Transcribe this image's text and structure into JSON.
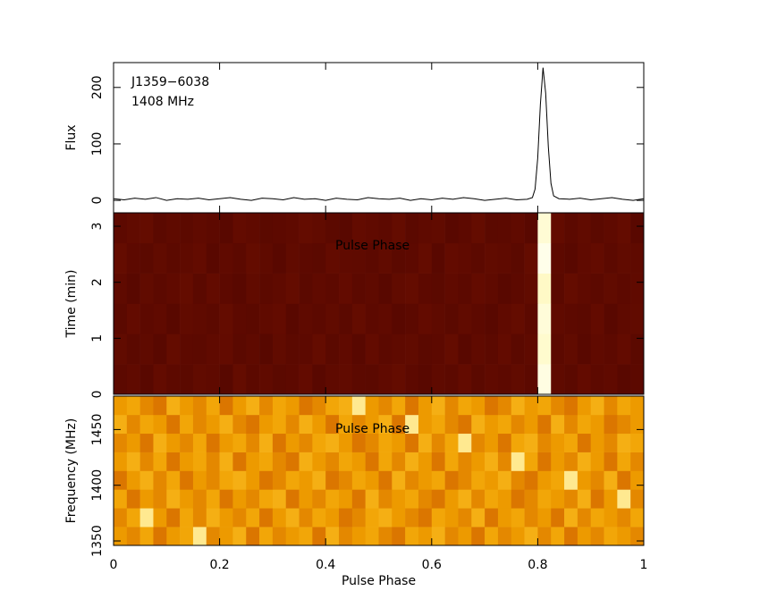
{
  "chart_data": [
    {
      "type": "line",
      "ylabel": "Flux",
      "annotations": [
        "J1359−6038",
        "1408 MHz"
      ],
      "xlim": [
        0,
        1
      ],
      "ylim": [
        -22,
        244
      ],
      "yticks": [
        0,
        100,
        200
      ],
      "color": "#000000",
      "x": [
        0,
        0.02,
        0.04,
        0.06,
        0.08,
        0.1,
        0.12,
        0.14,
        0.16,
        0.18,
        0.2,
        0.22,
        0.24,
        0.26,
        0.28,
        0.3,
        0.32,
        0.34,
        0.36,
        0.38,
        0.4,
        0.42,
        0.44,
        0.46,
        0.48,
        0.5,
        0.52,
        0.54,
        0.56,
        0.58,
        0.6,
        0.62,
        0.64,
        0.66,
        0.68,
        0.7,
        0.72,
        0.74,
        0.76,
        0.78,
        0.79,
        0.795,
        0.8,
        0.805,
        0.81,
        0.815,
        0.82,
        0.825,
        0.83,
        0.84,
        0.86,
        0.88,
        0.9,
        0.92,
        0.94,
        0.96,
        0.98,
        1
      ],
      "values": [
        3,
        1,
        4,
        2,
        5,
        0,
        3,
        2,
        4,
        1,
        3,
        5,
        2,
        0,
        4,
        3,
        1,
        5,
        2,
        3,
        0,
        4,
        2,
        1,
        5,
        3,
        2,
        4,
        0,
        3,
        1,
        4,
        2,
        5,
        3,
        0,
        2,
        4,
        1,
        2,
        5,
        20,
        75,
        170,
        235,
        190,
        95,
        30,
        8,
        3,
        2,
        4,
        1,
        3,
        5,
        2,
        0,
        3
      ]
    },
    {
      "type": "heatmap",
      "ylabel": "Time (min)",
      "annotations": [
        "Pulse Phase"
      ],
      "xlim": [
        0,
        1
      ],
      "ylim": [
        0,
        3.24
      ],
      "yticks": [
        0,
        1,
        2,
        3
      ],
      "zlim": [
        -10,
        240
      ],
      "colormap": [
        "#4a0300",
        "#a02000",
        "#ff9000",
        "#ffe840",
        "#fffff0"
      ],
      "xbins": [
        0,
        0.025,
        0.05,
        0.075,
        0.1,
        0.125,
        0.15,
        0.175,
        0.2,
        0.225,
        0.25,
        0.275,
        0.3,
        0.325,
        0.35,
        0.375,
        0.4,
        0.425,
        0.45,
        0.475,
        0.5,
        0.525,
        0.55,
        0.575,
        0.6,
        0.625,
        0.65,
        0.675,
        0.7,
        0.725,
        0.75,
        0.775,
        0.8,
        0.825,
        0.85,
        0.875,
        0.9,
        0.925,
        0.95,
        0.975,
        1
      ],
      "ybins": [
        0,
        0.54,
        1.08,
        1.62,
        2.16,
        2.7,
        3.24
      ],
      "z": [
        [
          3,
          6,
          1,
          8,
          4,
          2,
          7,
          5,
          0,
          9,
          3,
          6,
          2,
          4,
          8,
          1,
          5,
          7,
          3,
          2,
          6,
          9,
          4,
          1,
          5,
          3,
          8,
          2,
          6,
          4,
          7,
          3,
          235,
          5,
          2,
          8,
          4,
          6,
          1,
          3
        ],
        [
          7,
          2,
          5,
          1,
          9,
          4,
          3,
          6,
          8,
          2,
          5,
          0,
          7,
          3,
          4,
          9,
          2,
          6,
          1,
          8,
          3,
          5,
          7,
          2,
          4,
          9,
          1,
          6,
          3,
          8,
          2,
          5,
          228,
          3,
          7,
          1,
          6,
          4,
          8,
          2
        ],
        [
          2,
          8,
          4,
          6,
          1,
          7,
          5,
          3,
          9,
          4,
          2,
          6,
          8,
          1,
          5,
          3,
          7,
          2,
          9,
          4,
          6,
          1,
          3,
          8,
          5,
          2,
          7,
          4,
          1,
          6,
          9,
          3,
          232,
          6,
          4,
          2,
          8,
          1,
          5,
          7
        ],
        [
          5,
          1,
          7,
          3,
          6,
          9,
          2,
          8,
          4,
          1,
          7,
          3,
          5,
          9,
          2,
          6,
          4,
          8,
          3,
          5,
          1,
          7,
          9,
          4,
          2,
          6,
          3,
          8,
          5,
          1,
          4,
          7,
          225,
          2,
          9,
          5,
          3,
          7,
          4,
          6
        ],
        [
          9,
          4,
          2,
          7,
          3,
          5,
          8,
          1,
          6,
          3,
          9,
          5,
          1,
          7,
          4,
          2,
          8,
          6,
          5,
          3,
          7,
          2,
          4,
          9,
          1,
          8,
          6,
          3,
          7,
          5,
          2,
          9,
          238,
          4,
          1,
          6,
          8,
          3,
          7,
          5
        ],
        [
          4,
          7,
          9,
          2,
          5,
          3,
          6,
          4,
          1,
          8,
          6,
          2,
          4,
          5,
          9,
          7,
          3,
          1,
          8,
          6,
          4,
          9,
          2,
          5,
          7,
          1,
          4,
          9,
          2,
          3,
          6,
          1,
          230,
          8,
          3,
          7,
          2,
          5,
          9,
          1
        ]
      ]
    },
    {
      "type": "heatmap",
      "ylabel": "Frequency (MHz)",
      "xlabel": "Pulse Phase",
      "annotations": [
        "Pulse Phase"
      ],
      "xlim": [
        0,
        1
      ],
      "xticks": [
        0,
        0.2,
        0.4,
        0.6,
        0.8,
        1
      ],
      "ylim": [
        1346,
        1480
      ],
      "yticks": [
        1350,
        1400,
        1450
      ],
      "zlim": [
        0,
        16
      ],
      "colormap": [
        "#c04000",
        "#f0a000",
        "#ffd040",
        "#fff8c0"
      ],
      "xbins": [
        0,
        0.025,
        0.05,
        0.075,
        0.1,
        0.125,
        0.15,
        0.175,
        0.2,
        0.225,
        0.25,
        0.275,
        0.3,
        0.325,
        0.35,
        0.375,
        0.4,
        0.425,
        0.45,
        0.475,
        0.5,
        0.525,
        0.55,
        0.575,
        0.6,
        0.625,
        0.65,
        0.675,
        0.7,
        0.725,
        0.75,
        0.775,
        0.8,
        0.825,
        0.85,
        0.875,
        0.9,
        0.925,
        0.95,
        0.975,
        1
      ],
      "ybins": [
        1346,
        1362.75,
        1379.5,
        1396.25,
        1413,
        1429.75,
        1446.5,
        1463.25,
        1480
      ],
      "z": [
        [
          5,
          4,
          6,
          3,
          5,
          6,
          14,
          4,
          5,
          7,
          3,
          6,
          4,
          5,
          6,
          3,
          7,
          4,
          5,
          6,
          4,
          3,
          6,
          5,
          7,
          4,
          5,
          3,
          6,
          4,
          5,
          7,
          4,
          6,
          3,
          5,
          4,
          6,
          5,
          4
        ],
        [
          4,
          6,
          14,
          5,
          3,
          6,
          4,
          7,
          5,
          4,
          6,
          3,
          5,
          7,
          4,
          6,
          5,
          3,
          4,
          6,
          7,
          5,
          4,
          3,
          6,
          5,
          4,
          7,
          3,
          5,
          6,
          4,
          5,
          3,
          7,
          4,
          6,
          5,
          4,
          6
        ],
        [
          6,
          3,
          5,
          4,
          7,
          5,
          4,
          6,
          3,
          5,
          4,
          6,
          7,
          3,
          5,
          4,
          6,
          5,
          3,
          7,
          4,
          5,
          6,
          4,
          3,
          5,
          7,
          4,
          6,
          5,
          3,
          4,
          6,
          5,
          4,
          7,
          3,
          5,
          14,
          4
        ],
        [
          3,
          5,
          7,
          4,
          6,
          3,
          5,
          4,
          6,
          7,
          5,
          3,
          4,
          6,
          5,
          7,
          3,
          4,
          6,
          5,
          3,
          7,
          4,
          5,
          6,
          3,
          4,
          6,
          5,
          7,
          4,
          3,
          5,
          6,
          14,
          5,
          4,
          7,
          3,
          5
        ],
        [
          5,
          7,
          4,
          6,
          3,
          5,
          6,
          4,
          7,
          3,
          5,
          6,
          4,
          3,
          7,
          5,
          4,
          6,
          5,
          3,
          6,
          4,
          7,
          5,
          3,
          6,
          4,
          5,
          7,
          4,
          14,
          6,
          3,
          5,
          4,
          7,
          5,
          3,
          6,
          4
        ],
        [
          4,
          5,
          3,
          7,
          5,
          4,
          6,
          3,
          5,
          6,
          4,
          7,
          3,
          5,
          4,
          6,
          7,
          5,
          3,
          4,
          6,
          5,
          3,
          7,
          4,
          6,
          14,
          4,
          5,
          3,
          6,
          7,
          4,
          5,
          6,
          3,
          5,
          4,
          7,
          6
        ],
        [
          7,
          4,
          6,
          5,
          3,
          6,
          4,
          5,
          7,
          4,
          3,
          5,
          6,
          4,
          7,
          5,
          3,
          6,
          4,
          5,
          7,
          3,
          14,
          5,
          6,
          4,
          3,
          7,
          5,
          6,
          4,
          5,
          3,
          7,
          4,
          6,
          5,
          3,
          4,
          5
        ],
        [
          5,
          6,
          4,
          3,
          7,
          5,
          4,
          6,
          3,
          5,
          7,
          4,
          6,
          5,
          3,
          4,
          6,
          7,
          14,
          5,
          4,
          6,
          3,
          5,
          7,
          4,
          6,
          5,
          3,
          4,
          7,
          5,
          6,
          4,
          3,
          5,
          7,
          4,
          6,
          5
        ]
      ]
    }
  ]
}
